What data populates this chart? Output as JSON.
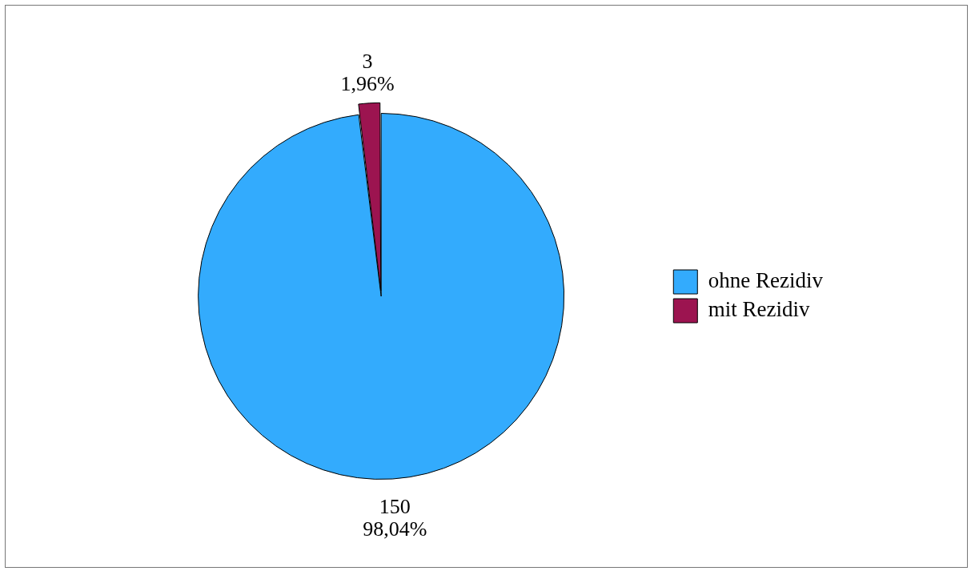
{
  "chart_data": {
    "type": "pie",
    "categories": [
      "ohne Rezidiv",
      "mit Rezidiv"
    ],
    "values": [
      150,
      3
    ],
    "colors": [
      "#33abfd",
      "#9c1450"
    ],
    "value_labels": [
      "150\n98,04%",
      "3\n1,96%"
    ],
    "legend": "right"
  }
}
